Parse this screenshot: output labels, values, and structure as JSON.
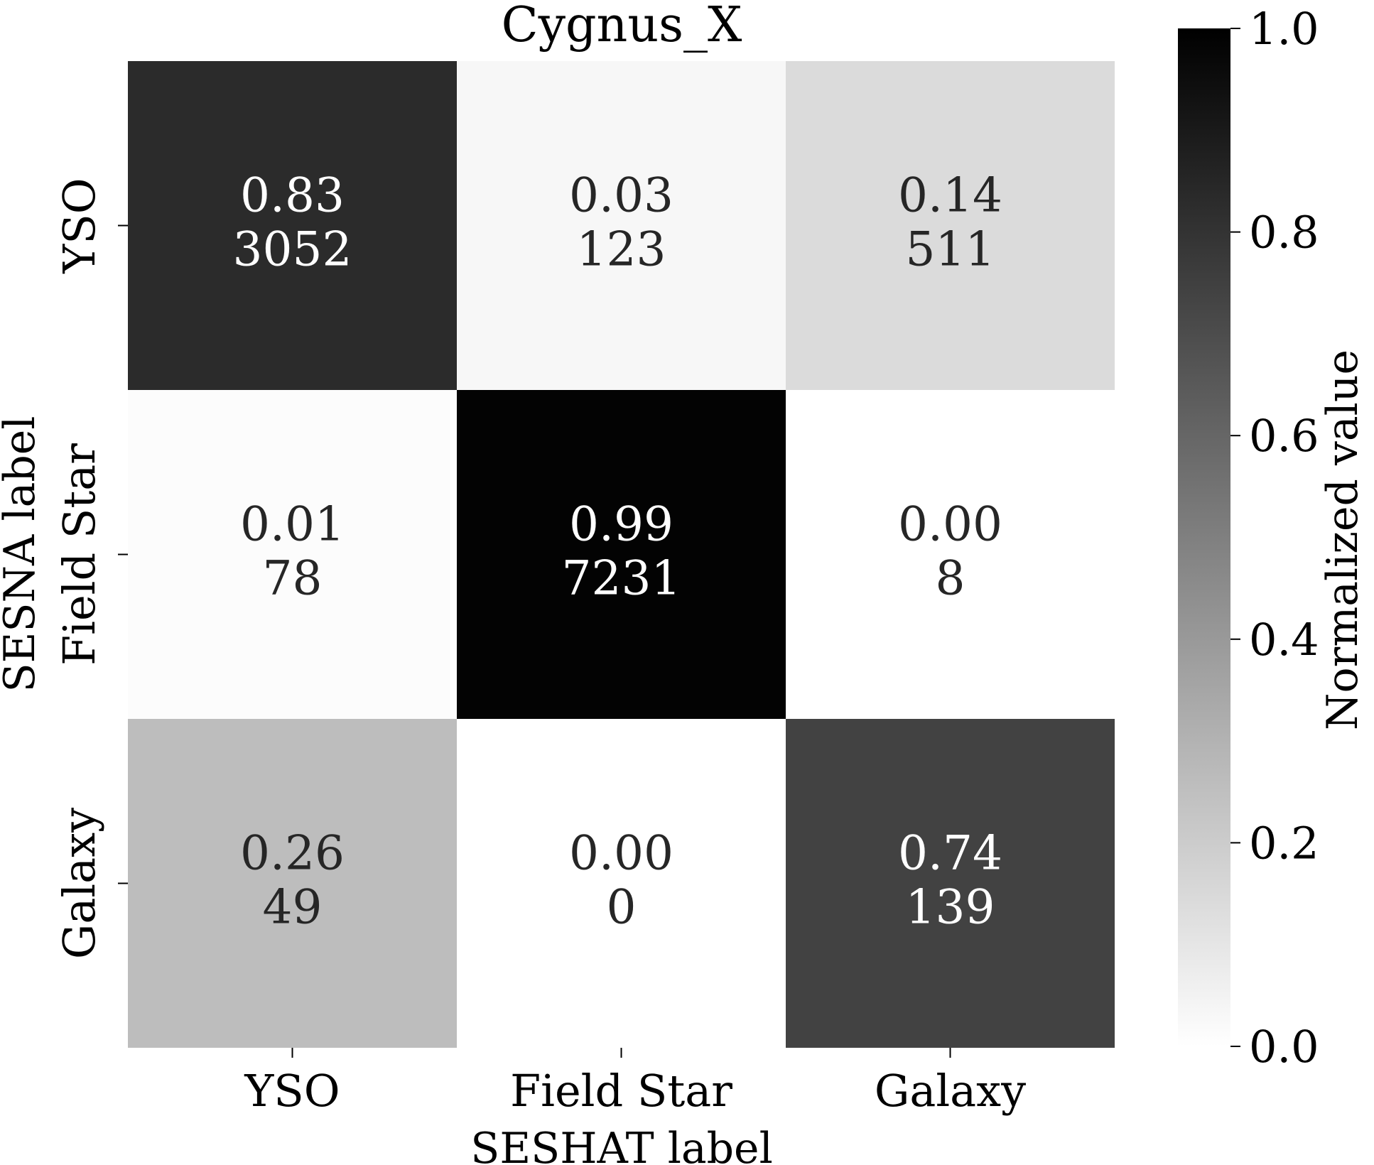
{
  "chart_data": {
    "type": "heatmap",
    "title": "Cygnus_X",
    "xlabel": "SESHAT label",
    "ylabel": "SESNA label",
    "x_categories": [
      "YSO",
      "Field Star",
      "Galaxy"
    ],
    "y_categories": [
      "YSO",
      "Field Star",
      "Galaxy"
    ],
    "values": [
      [
        0.83,
        0.03,
        0.14
      ],
      [
        0.01,
        0.99,
        0.0
      ],
      [
        0.26,
        0.0,
        0.74
      ]
    ],
    "value_labels": [
      [
        "0.83",
        "0.03",
        "0.14"
      ],
      [
        "0.01",
        "0.99",
        "0.00"
      ],
      [
        "0.26",
        "0.00",
        "0.74"
      ]
    ],
    "counts": [
      [
        "3052",
        "123",
        "511"
      ],
      [
        "78",
        "7231",
        "8"
      ],
      [
        "49",
        "0",
        "139"
      ]
    ],
    "colorbar": {
      "label": "Normalized value",
      "range": [
        0,
        1
      ],
      "ticks": [
        "0.0",
        "0.2",
        "0.4",
        "0.6",
        "0.8",
        "1.0"
      ],
      "colormap": [
        "#ffffff",
        "#000000"
      ]
    },
    "grid": false
  }
}
